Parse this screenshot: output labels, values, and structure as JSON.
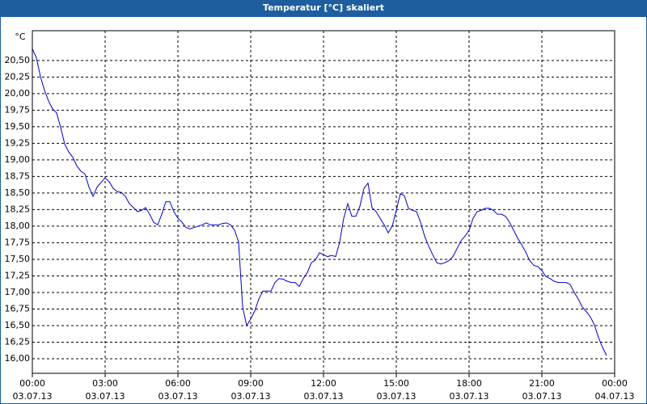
{
  "window_title": "Temperatur [°C] skaliert",
  "chart_data": {
    "type": "line",
    "ylabel": "°C",
    "x": [
      0,
      10,
      20,
      30,
      40,
      50,
      60,
      70,
      80,
      90,
      100,
      110,
      120,
      130,
      140,
      150,
      160,
      170,
      180,
      190,
      200,
      210,
      220,
      230,
      240,
      250,
      260,
      270,
      280,
      290,
      300,
      310,
      320,
      330,
      340,
      350,
      360,
      370,
      380,
      390,
      400,
      410,
      420,
      430,
      440,
      450,
      460,
      470,
      480,
      490,
      500,
      510,
      520,
      530,
      540,
      550,
      560,
      570,
      580,
      590,
      600,
      610,
      620,
      630,
      640,
      650,
      660,
      670,
      680,
      690,
      700,
      710,
      720,
      730,
      740,
      750,
      760,
      770,
      780,
      790,
      800,
      810,
      820,
      830,
      840,
      850,
      860,
      870,
      880,
      890,
      900,
      910,
      920,
      930,
      940,
      950,
      960,
      970,
      980,
      990,
      1000,
      1010,
      1020,
      1030,
      1040,
      1050,
      1060,
      1070,
      1080,
      1090,
      1100,
      1110,
      1120,
      1130,
      1140,
      1150,
      1160,
      1170,
      1180,
      1190,
      1200,
      1210,
      1220,
      1230,
      1240,
      1250,
      1260,
      1270,
      1280,
      1290,
      1300,
      1310,
      1320,
      1330,
      1340,
      1350,
      1360,
      1370,
      1380,
      1390,
      1400,
      1410,
      1420
    ],
    "series": [
      {
        "name": "Temperatur",
        "color": "#0000cc",
        "values": [
          20.68,
          20.54,
          20.26,
          20.05,
          19.89,
          19.77,
          19.71,
          19.49,
          19.24,
          19.12,
          19.04,
          18.91,
          18.83,
          18.79,
          18.59,
          18.45,
          18.59,
          18.66,
          18.73,
          18.67,
          18.57,
          18.52,
          18.51,
          18.45,
          18.34,
          18.28,
          18.22,
          18.24,
          18.28,
          18.18,
          18.06,
          18.02,
          18.18,
          18.37,
          18.37,
          18.22,
          18.12,
          18.06,
          17.98,
          17.96,
          17.98,
          18.0,
          18.02,
          18.05,
          18.02,
          18.02,
          18.02,
          18.04,
          18.05,
          18.02,
          17.94,
          17.76,
          16.78,
          16.5,
          16.6,
          16.72,
          16.9,
          17.02,
          17.02,
          17.02,
          17.15,
          17.21,
          17.2,
          17.17,
          17.15,
          17.15,
          17.09,
          17.21,
          17.3,
          17.45,
          17.49,
          17.6,
          17.57,
          17.54,
          17.56,
          17.54,
          17.76,
          18.12,
          18.34,
          18.15,
          18.15,
          18.3,
          18.57,
          18.65,
          18.28,
          18.22,
          18.12,
          18.02,
          17.9,
          18.0,
          18.24,
          18.49,
          18.46,
          18.27,
          18.24,
          18.22,
          18.06,
          17.85,
          17.7,
          17.57,
          17.45,
          17.43,
          17.45,
          17.48,
          17.54,
          17.66,
          17.78,
          17.85,
          17.94,
          18.12,
          18.22,
          18.24,
          18.27,
          18.27,
          18.24,
          18.18,
          18.18,
          18.15,
          18.06,
          17.94,
          17.82,
          17.72,
          17.61,
          17.48,
          17.41,
          17.39,
          17.33,
          17.24,
          17.21,
          17.17,
          17.15,
          17.15,
          17.15,
          17.12,
          17.0,
          16.9,
          16.78,
          16.71,
          16.63,
          16.51,
          16.32,
          16.17,
          16.05
        ]
      }
    ],
    "xlim": [
      0,
      1440
    ],
    "xticks": [
      {
        "value": 0,
        "label": "00:00"
      },
      {
        "value": 180,
        "label": "03:00"
      },
      {
        "value": 360,
        "label": "06:00"
      },
      {
        "value": 540,
        "label": "09:00"
      },
      {
        "value": 720,
        "label": "12:00"
      },
      {
        "value": 900,
        "label": "15:00"
      },
      {
        "value": 1080,
        "label": "18:00"
      },
      {
        "value": 1260,
        "label": "21:00"
      },
      {
        "value": 1440,
        "label": "00:00"
      }
    ],
    "xtick_dates": [
      "03.07.13",
      "03.07.13",
      "03.07.13",
      "03.07.13",
      "03.07.13",
      "03.07.13",
      "03.07.13",
      "03.07.13",
      "04.07.13"
    ],
    "ylim": [
      15.78,
      20.95
    ],
    "yticks": [
      {
        "value": 16,
        "label": "16,00"
      },
      {
        "value": 16.25,
        "label": "16,25"
      },
      {
        "value": 16.5,
        "label": "16,50"
      },
      {
        "value": 16.75,
        "label": "16,75"
      },
      {
        "value": 17,
        "label": "17,00"
      },
      {
        "value": 17.25,
        "label": "17,25"
      },
      {
        "value": 17.5,
        "label": "17,50"
      },
      {
        "value": 17.75,
        "label": "17,75"
      },
      {
        "value": 18,
        "label": "18,00"
      },
      {
        "value": 18.25,
        "label": "18,25"
      },
      {
        "value": 18.5,
        "label": "18,50"
      },
      {
        "value": 18.75,
        "label": "18,75"
      },
      {
        "value": 19,
        "label": "19,00"
      },
      {
        "value": 19.25,
        "label": "19,25"
      },
      {
        "value": 19.5,
        "label": "19,50"
      },
      {
        "value": 19.75,
        "label": "19,75"
      },
      {
        "value": 20,
        "label": "20,00"
      },
      {
        "value": 20.25,
        "label": "20,25"
      },
      {
        "value": 20.5,
        "label": "20,50"
      }
    ],
    "grid": true
  }
}
